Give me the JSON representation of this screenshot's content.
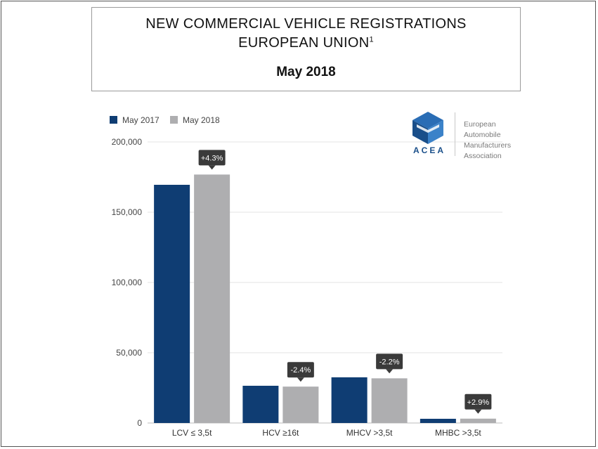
{
  "header": {
    "line1": "NEW COMMERCIAL VEHICLE REGISTRATIONS",
    "line2": "EUROPEAN UNION",
    "line2_sup": "1",
    "period": "May 2018"
  },
  "logo": {
    "acronym": "ACEA",
    "name_lines": [
      "European",
      "Automobile",
      "Manufacturers",
      "Association"
    ],
    "icon": "acea-cube-logo"
  },
  "colors": {
    "may2017": "#0f3d73",
    "may2018": "#aeaeb0",
    "badge": "#3a3a3a",
    "grid": "#e3e3e3"
  },
  "chart_data": {
    "type": "bar",
    "categories": [
      "LCV ≤ 3,5t",
      "HCV ≥16t",
      "MHCV >3,5t",
      "MHBC >3,5t"
    ],
    "series": [
      {
        "name": "May 2017",
        "values": [
          169500,
          26500,
          32500,
          3000
        ]
      },
      {
        "name": "May 2018",
        "values": [
          176800,
          25900,
          31800,
          3100
        ]
      }
    ],
    "annotations": [
      "+4.3%",
      "-2.4%",
      "-2.2%",
      "+2.9%"
    ],
    "yticks": [
      0,
      50000,
      100000,
      150000,
      200000
    ],
    "ytick_labels": [
      "0",
      "50,000",
      "100,000",
      "150,000",
      "200,000"
    ],
    "ylim": [
      0,
      200000
    ],
    "legend_position": "top-left",
    "grid": true
  }
}
